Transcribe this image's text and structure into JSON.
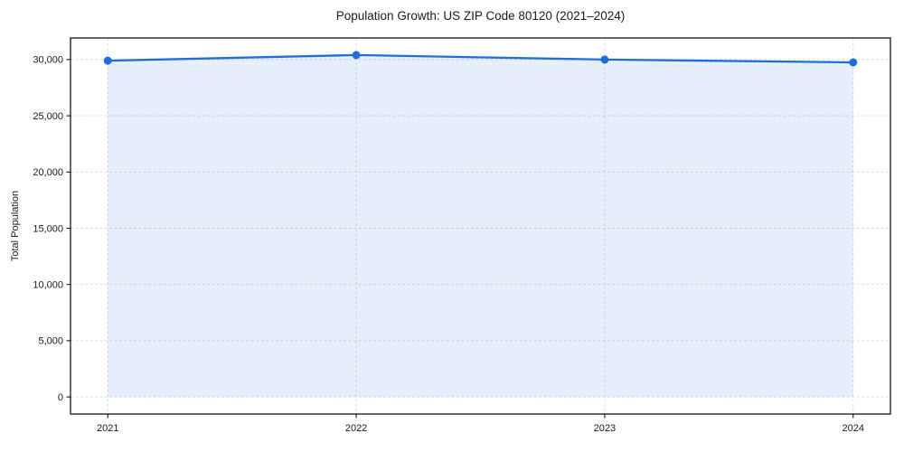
{
  "chart_data": {
    "type": "line",
    "title": "Population Growth: US ZIP Code 80120 (2021–2024)",
    "xlabel": "",
    "ylabel": "Total Population",
    "x": [
      2021,
      2022,
      2023,
      2024
    ],
    "series": [
      {
        "name": "Total Population",
        "values": [
          29900,
          30400,
          30000,
          29750
        ]
      }
    ],
    "xlim": [
      2020.85,
      2024.15
    ],
    "ylim": [
      -1520,
      31920
    ],
    "x_ticks": {
      "values": [
        2021,
        2022,
        2023,
        2024
      ],
      "labels": [
        "2021",
        "2022",
        "2023",
        "2024"
      ]
    },
    "y_ticks": {
      "values": [
        0,
        5000,
        10000,
        15000,
        20000,
        25000,
        30000
      ],
      "labels": [
        "0",
        "5,000",
        "10,000",
        "15,000",
        "20,000",
        "25,000",
        "30,000"
      ]
    },
    "grid": true,
    "grid_style": "dashed",
    "legend": false,
    "area_fill": true,
    "baseline": 0,
    "marker": {
      "shape": "circle",
      "size": 4.5
    },
    "colors": {
      "line": "#1f6fdb",
      "fill": "#1f6fdb",
      "fill_opacity": 0.11,
      "grid": "#d9d9d9",
      "axis": "#000000",
      "text": "#1a1a1a",
      "background": "#ffffff"
    }
  }
}
